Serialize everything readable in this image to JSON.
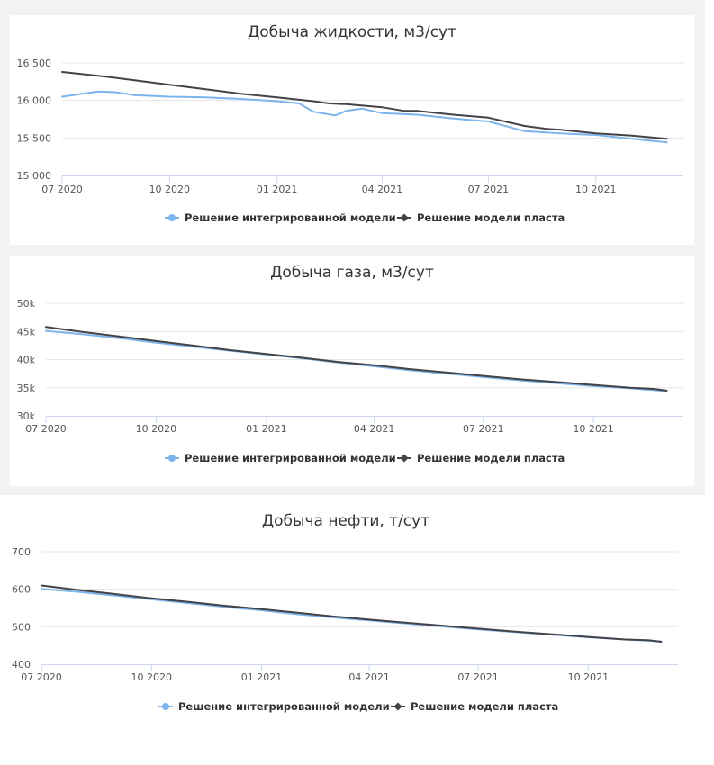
{
  "chart_data": [
    {
      "type": "line",
      "title": "Добыча жидкости, м3/сут",
      "ylim": [
        15000,
        16500
      ],
      "yticks": [
        "15 000",
        "15 500",
        "16 000",
        "16 500"
      ],
      "ytick_values": [
        15000,
        15500,
        16000,
        16500
      ],
      "xlim": [
        "2020-07-01",
        "2021-12-15"
      ],
      "xticks": [
        "07 2020",
        "10 2020",
        "01 2021",
        "04 2021",
        "07 2021",
        "10 2021"
      ],
      "xtick_values": [
        "2020-07-01",
        "2020-10-01",
        "2021-01-01",
        "2021-04-01",
        "2021-07-01",
        "2021-10-01"
      ],
      "grid": true,
      "legend": "bottom-center",
      "series": [
        {
          "name": "Решение интегрированной модели",
          "color": "#7cb5ec",
          "x": [
            "2020-07-01",
            "2020-08-01",
            "2020-08-15",
            "2020-09-01",
            "2020-10-01",
            "2020-11-01",
            "2020-12-01",
            "2021-01-01",
            "2021-01-20",
            "2021-02-01",
            "2021-02-20",
            "2021-03-01",
            "2021-03-15",
            "2021-04-01",
            "2021-05-01",
            "2021-06-01",
            "2021-07-01",
            "2021-08-01",
            "2021-09-01",
            "2021-10-01",
            "2021-11-01",
            "2021-12-01"
          ],
          "y": [
            16050,
            16120,
            16110,
            16070,
            16050,
            16040,
            16020,
            15990,
            15960,
            15850,
            15800,
            15860,
            15890,
            15830,
            15810,
            15760,
            15720,
            15590,
            15560,
            15540,
            15490,
            15440
          ]
        },
        {
          "name": "Решение модели пласта",
          "color": "#434348",
          "x": [
            "2020-07-01",
            "2020-08-01",
            "2020-09-01",
            "2020-10-01",
            "2020-11-01",
            "2020-12-01",
            "2021-01-01",
            "2021-02-01",
            "2021-02-15",
            "2021-03-01",
            "2021-04-01",
            "2021-04-20",
            "2021-05-01",
            "2021-06-01",
            "2021-07-01",
            "2021-08-01",
            "2021-08-20",
            "2021-09-01",
            "2021-10-01",
            "2021-11-01",
            "2021-12-01"
          ],
          "y": [
            16380,
            16330,
            16270,
            16210,
            16150,
            16090,
            16040,
            15990,
            15960,
            15950,
            15910,
            15860,
            15860,
            15810,
            15770,
            15660,
            15620,
            15610,
            15560,
            15530,
            15490
          ]
        }
      ]
    },
    {
      "type": "line",
      "title": "Добыча газа, м3/сут",
      "ylim": [
        30000,
        50000
      ],
      "yticks": [
        "30k",
        "35k",
        "40k",
        "45k",
        "50k"
      ],
      "ytick_values": [
        30000,
        35000,
        40000,
        45000,
        50000
      ],
      "xlim": [
        "2020-07-01",
        "2021-12-15"
      ],
      "xticks": [
        "07 2020",
        "10 2020",
        "01 2021",
        "04 2021",
        "07 2021",
        "10 2021"
      ],
      "xtick_values": [
        "2020-07-01",
        "2020-10-01",
        "2021-01-01",
        "2021-04-01",
        "2021-07-01",
        "2021-10-01"
      ],
      "grid": true,
      "legend": "bottom-center",
      "series": [
        {
          "name": "Решение интегрированной модели",
          "color": "#7cb5ec",
          "x": [
            "2020-07-01",
            "2020-08-01",
            "2020-09-01",
            "2020-10-01",
            "2020-11-01",
            "2020-12-01",
            "2021-01-01",
            "2021-02-01",
            "2021-03-01",
            "2021-04-01",
            "2021-05-01",
            "2021-06-01",
            "2021-07-01",
            "2021-08-01",
            "2021-09-01",
            "2021-10-01",
            "2021-11-01",
            "2021-12-01"
          ],
          "y": [
            45100,
            44500,
            43800,
            43000,
            42300,
            41600,
            40900,
            40200,
            39500,
            38800,
            38100,
            37500,
            36900,
            36300,
            35800,
            35300,
            34900,
            34400
          ]
        },
        {
          "name": "Решение модели пласта",
          "color": "#434348",
          "x": [
            "2020-07-01",
            "2020-08-01",
            "2020-09-01",
            "2020-10-01",
            "2020-11-01",
            "2020-12-01",
            "2021-01-01",
            "2021-02-01",
            "2021-03-01",
            "2021-04-01",
            "2021-05-01",
            "2021-06-01",
            "2021-07-01",
            "2021-08-01",
            "2021-09-01",
            "2021-10-01",
            "2021-11-01",
            "2021-11-20",
            "2021-12-01"
          ],
          "y": [
            45800,
            44900,
            44100,
            43300,
            42500,
            41700,
            41000,
            40300,
            39600,
            39000,
            38300,
            37700,
            37100,
            36500,
            36000,
            35500,
            35000,
            34800,
            34500
          ]
        }
      ]
    },
    {
      "type": "line",
      "title": "Добыча нефти, т/сут",
      "ylim": [
        400,
        700
      ],
      "yticks": [
        "400",
        "500",
        "600",
        "700"
      ],
      "ytick_values": [
        400,
        500,
        600,
        700
      ],
      "xlim": [
        "2020-07-01",
        "2021-12-15"
      ],
      "xticks": [
        "07 2020",
        "10 2020",
        "01 2021",
        "04 2021",
        "07 2021",
        "10 2021"
      ],
      "xtick_values": [
        "2020-07-01",
        "2020-10-01",
        "2021-01-01",
        "2021-04-01",
        "2021-07-01",
        "2021-10-01"
      ],
      "grid": true,
      "legend": "bottom-center",
      "series": [
        {
          "name": "Решение интегрированной модели",
          "color": "#7cb5ec",
          "x": [
            "2020-07-01",
            "2020-08-01",
            "2020-09-01",
            "2020-10-01",
            "2020-11-01",
            "2020-12-01",
            "2021-01-01",
            "2021-02-01",
            "2021-03-01",
            "2021-04-01",
            "2021-05-01",
            "2021-06-01",
            "2021-07-01",
            "2021-08-01",
            "2021-09-01",
            "2021-10-01",
            "2021-11-01",
            "2021-12-01"
          ],
          "y": [
            601,
            593,
            583,
            573,
            563,
            553,
            544,
            533,
            525,
            517,
            509,
            501,
            493,
            486,
            479,
            472,
            466,
            461
          ]
        },
        {
          "name": "Решение модели пласта",
          "color": "#434348",
          "x": [
            "2020-07-01",
            "2020-08-01",
            "2020-09-01",
            "2020-10-01",
            "2020-11-01",
            "2020-12-01",
            "2021-01-01",
            "2021-02-01",
            "2021-03-01",
            "2021-04-01",
            "2021-05-01",
            "2021-06-01",
            "2021-07-01",
            "2021-08-01",
            "2021-09-01",
            "2021-10-01",
            "2021-11-01",
            "2021-11-20",
            "2021-12-01"
          ],
          "y": [
            610,
            598,
            587,
            576,
            566,
            556,
            547,
            537,
            528,
            519,
            511,
            503,
            495,
            487,
            480,
            473,
            466,
            464,
            460
          ]
        }
      ]
    }
  ]
}
